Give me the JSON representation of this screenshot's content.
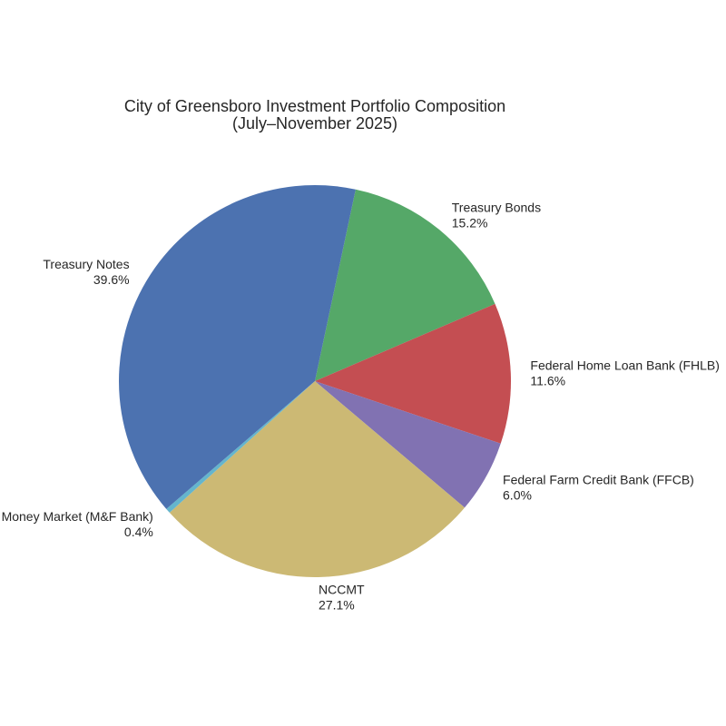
{
  "chart_data": {
    "type": "pie",
    "title_lines": [
      "City of Greensboro Investment Portfolio Composition",
      "(July–November 2025)"
    ],
    "slices": [
      {
        "label": "Treasury Bonds",
        "pct_label": "15.2%",
        "value": 15.2,
        "color": "#55a868"
      },
      {
        "label": "Federal Home Loan Bank (FHLB)",
        "pct_label": "11.6%",
        "value": 11.6,
        "color": "#c44e52"
      },
      {
        "label": "Federal Farm Credit Bank (FFCB)",
        "pct_label": "6.0%",
        "value": 6.0,
        "color": "#8172b2"
      },
      {
        "label": "NCCMT",
        "pct_label": "27.1%",
        "value": 27.1,
        "color": "#ccb974"
      },
      {
        "label": "Money Market (M&F Bank)",
        "pct_label": "0.4%",
        "value": 0.4,
        "color": "#64b5cd"
      },
      {
        "label": "Treasury Notes",
        "pct_label": "39.6%",
        "value": 39.6,
        "color": "#4c72b0"
      }
    ]
  }
}
